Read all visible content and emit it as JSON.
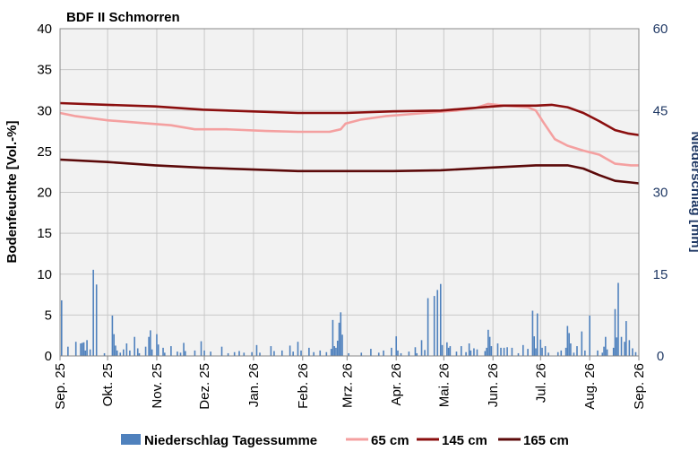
{
  "chart_data": {
    "type": "line",
    "title": "BDF II Schmorren",
    "ylabel": "Bodenfeuchte [Vol.-%]",
    "y2label": "Niederschlag [mm]",
    "ylim": [
      0,
      40
    ],
    "y2lim": [
      0,
      60
    ],
    "yticks": [
      "0",
      "5",
      "10",
      "15",
      "20",
      "25",
      "30",
      "35",
      "40"
    ],
    "y2ticks": [
      "0",
      "15",
      "30",
      "45",
      "60"
    ],
    "xticks": [
      "Sep. 25",
      "Okt. 25",
      "Nov. 25",
      "Dez. 25",
      "Jan. 26",
      "Feb. 26",
      "Mrz. 26",
      "Apr. 26",
      "Mai. 26",
      "Jun. 26",
      "Jul. 26",
      "Aug. 26",
      "Sep. 26"
    ],
    "x_days": [
      0,
      30,
      61,
      91,
      122,
      153,
      181,
      212,
      242,
      273,
      303,
      334,
      365
    ],
    "grid": true,
    "legend_position": "bottom",
    "series": [
      {
        "name": "65 cm",
        "color": "#f4a0a0",
        "points": [
          [
            0,
            29.7
          ],
          [
            10,
            29.3
          ],
          [
            30,
            28.8
          ],
          [
            50,
            28.5
          ],
          [
            70,
            28.2
          ],
          [
            85,
            27.7
          ],
          [
            105,
            27.7
          ],
          [
            130,
            27.5
          ],
          [
            150,
            27.4
          ],
          [
            170,
            27.4
          ],
          [
            177,
            27.7
          ],
          [
            180,
            28.4
          ],
          [
            190,
            28.9
          ],
          [
            205,
            29.3
          ],
          [
            230,
            29.7
          ],
          [
            250,
            30.0
          ],
          [
            262,
            30.3
          ],
          [
            270,
            30.8
          ],
          [
            280,
            30.6
          ],
          [
            295,
            30.4
          ],
          [
            300,
            30.0
          ],
          [
            305,
            28.5
          ],
          [
            312,
            26.5
          ],
          [
            320,
            25.7
          ],
          [
            330,
            25.1
          ],
          [
            340,
            24.6
          ],
          [
            350,
            23.5
          ],
          [
            360,
            23.3
          ],
          [
            365,
            23.3
          ]
        ]
      },
      {
        "name": "145 cm",
        "color": "#8b0f0f",
        "points": [
          [
            0,
            30.9
          ],
          [
            30,
            30.7
          ],
          [
            60,
            30.5
          ],
          [
            90,
            30.1
          ],
          [
            120,
            29.9
          ],
          [
            150,
            29.7
          ],
          [
            180,
            29.7
          ],
          [
            210,
            29.9
          ],
          [
            240,
            30.0
          ],
          [
            260,
            30.3
          ],
          [
            280,
            30.6
          ],
          [
            300,
            30.6
          ],
          [
            310,
            30.7
          ],
          [
            320,
            30.4
          ],
          [
            330,
            29.7
          ],
          [
            340,
            28.7
          ],
          [
            350,
            27.6
          ],
          [
            358,
            27.2
          ],
          [
            365,
            27.0
          ]
        ]
      },
      {
        "name": "165 cm",
        "color": "#5c0a0a",
        "points": [
          [
            0,
            24.0
          ],
          [
            30,
            23.7
          ],
          [
            60,
            23.3
          ],
          [
            90,
            23.0
          ],
          [
            120,
            22.8
          ],
          [
            150,
            22.6
          ],
          [
            180,
            22.6
          ],
          [
            210,
            22.6
          ],
          [
            240,
            22.7
          ],
          [
            270,
            23.0
          ],
          [
            300,
            23.3
          ],
          [
            320,
            23.3
          ],
          [
            330,
            22.9
          ],
          [
            340,
            22.1
          ],
          [
            350,
            21.4
          ],
          [
            360,
            21.2
          ],
          [
            365,
            21.1
          ]
        ]
      }
    ],
    "bars": {
      "name": "Niederschlag Tagessumme",
      "color": "#4f81bd",
      "axis": "right",
      "points": [
        [
          1,
          10.2
        ],
        [
          5,
          1.7
        ],
        [
          10,
          2.6
        ],
        [
          13,
          2.3
        ],
        [
          14,
          2.4
        ],
        [
          15,
          2.5
        ],
        [
          16,
          1.0
        ],
        [
          17,
          2.9
        ],
        [
          19,
          1.2
        ],
        [
          21,
          15.8
        ],
        [
          23,
          13.1
        ],
        [
          28,
          0.5
        ],
        [
          33,
          7.4
        ],
        [
          34,
          4.0
        ],
        [
          35,
          1.9
        ],
        [
          36,
          1.0
        ],
        [
          38,
          0.6
        ],
        [
          40,
          1.2
        ],
        [
          42,
          2.3
        ],
        [
          44,
          1.0
        ],
        [
          47,
          3.5
        ],
        [
          49,
          1.4
        ],
        [
          50,
          0.5
        ],
        [
          54,
          1.7
        ],
        [
          56,
          3.5
        ],
        [
          57,
          4.7
        ],
        [
          58,
          1.2
        ],
        [
          61,
          4.0
        ],
        [
          62,
          2.1
        ],
        [
          65,
          1.5
        ],
        [
          66,
          0.6
        ],
        [
          70,
          1.8
        ],
        [
          74,
          0.8
        ],
        [
          76,
          0.6
        ],
        [
          78,
          2.4
        ],
        [
          79,
          0.9
        ],
        [
          85,
          1.0
        ],
        [
          89,
          2.7
        ],
        [
          91,
          1.0
        ],
        [
          95,
          0.8
        ],
        [
          102,
          1.7
        ],
        [
          106,
          0.5
        ],
        [
          110,
          0.7
        ],
        [
          113,
          0.9
        ],
        [
          116,
          0.6
        ],
        [
          121,
          0.7
        ],
        [
          124,
          2.0
        ],
        [
          126,
          0.6
        ],
        [
          133,
          1.8
        ],
        [
          135,
          0.9
        ],
        [
          140,
          1.0
        ],
        [
          145,
          1.9
        ],
        [
          147,
          0.8
        ],
        [
          150,
          2.6
        ],
        [
          152,
          1.0
        ],
        [
          157,
          1.5
        ],
        [
          160,
          0.7
        ],
        [
          164,
          1.0
        ],
        [
          168,
          0.7
        ],
        [
          171,
          1.3
        ],
        [
          172,
          6.6
        ],
        [
          173,
          1.8
        ],
        [
          174,
          1.5
        ],
        [
          175,
          2.8
        ],
        [
          176,
          6.1
        ],
        [
          177,
          8.0
        ],
        [
          178,
          3.9
        ],
        [
          182,
          0.5
        ],
        [
          190,
          0.6
        ],
        [
          196,
          1.3
        ],
        [
          201,
          0.6
        ],
        [
          204,
          1.0
        ],
        [
          209,
          1.5
        ],
        [
          212,
          3.6
        ],
        [
          213,
          1.0
        ],
        [
          215,
          0.5
        ],
        [
          220,
          0.8
        ],
        [
          224,
          1.6
        ],
        [
          225,
          0.5
        ],
        [
          228,
          2.9
        ],
        [
          230,
          1.1
        ],
        [
          232,
          10.6
        ],
        [
          236,
          11.0
        ],
        [
          238,
          12.1
        ],
        [
          240,
          13.2
        ],
        [
          241,
          2.0
        ],
        [
          244,
          2.5
        ],
        [
          245,
          1.5
        ],
        [
          246,
          1.8
        ],
        [
          250,
          0.8
        ],
        [
          253,
          1.8
        ],
        [
          256,
          0.7
        ],
        [
          258,
          2.3
        ],
        [
          259,
          1.0
        ],
        [
          261,
          1.4
        ],
        [
          263,
          1.2
        ],
        [
          268,
          0.9
        ],
        [
          269,
          1.5
        ],
        [
          270,
          4.8
        ],
        [
          271,
          3.5
        ],
        [
          272,
          1.8
        ],
        [
          276,
          2.3
        ],
        [
          278,
          1.5
        ],
        [
          280,
          1.5
        ],
        [
          282,
          1.6
        ],
        [
          285,
          1.5
        ],
        [
          289,
          0.5
        ],
        [
          292,
          2.0
        ],
        [
          295,
          1.3
        ],
        [
          298,
          8.3
        ],
        [
          299,
          3.6
        ],
        [
          300,
          1.4
        ],
        [
          301,
          7.8
        ],
        [
          303,
          3.0
        ],
        [
          304,
          1.5
        ],
        [
          306,
          1.8
        ],
        [
          308,
          0.6
        ],
        [
          314,
          0.7
        ],
        [
          316,
          1.0
        ],
        [
          319,
          1.5
        ],
        [
          320,
          5.5
        ],
        [
          321,
          4.2
        ],
        [
          322,
          2.3
        ],
        [
          324,
          0.6
        ],
        [
          326,
          1.8
        ],
        [
          329,
          4.5
        ],
        [
          331,
          1.0
        ],
        [
          334,
          7.4
        ],
        [
          339,
          1.0
        ],
        [
          342,
          0.6
        ],
        [
          343,
          1.7
        ],
        [
          344,
          3.5
        ],
        [
          345,
          1.2
        ],
        [
          349,
          1.5
        ],
        [
          350,
          8.6
        ],
        [
          351,
          3.4
        ],
        [
          352,
          13.4
        ],
        [
          354,
          3.5
        ],
        [
          356,
          2.6
        ],
        [
          357,
          6.4
        ],
        [
          359,
          2.9
        ],
        [
          361,
          1.4
        ],
        [
          363,
          0.7
        ]
      ]
    }
  }
}
